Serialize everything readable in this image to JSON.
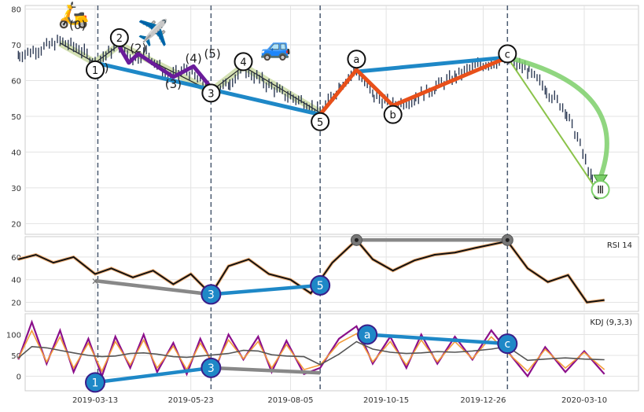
{
  "chart_data": [
    {
      "type": "line",
      "panel": "price",
      "ylim": [
        17,
        81
      ],
      "yticks": [
        20,
        30,
        40,
        50,
        60,
        70,
        80
      ],
      "grid": true,
      "x_dates": [
        "2019-03-13",
        "2019-05-23",
        "2019-08-05",
        "2019-10-15",
        "2019-12-26",
        "2020-03-10"
      ],
      "vertical_markers": [
        "2019-03-15",
        "2019-06-07",
        "2019-08-27",
        "2020-01-13"
      ],
      "wave_labels": [
        {
          "text": "(0)",
          "date": "2019-02-28",
          "y": 75.5,
          "style": "plain"
        },
        {
          "text": "2",
          "date": "2019-03-31",
          "y": 72.0,
          "style": "circle"
        },
        {
          "text": "(2)",
          "date": "2019-04-14",
          "y": 69.0,
          "style": "plain"
        },
        {
          "text": "(1)",
          "date": "2019-03-17",
          "y": 63.5,
          "style": "plain"
        },
        {
          "text": "1",
          "date": "2019-03-13",
          "y": 63.0,
          "style": "circle"
        },
        {
          "text": "(3)",
          "date": "2019-05-10",
          "y": 59.0,
          "style": "plain"
        },
        {
          "text": "(4)",
          "date": "2019-05-25",
          "y": 66.2,
          "style": "plain"
        },
        {
          "text": "(5)",
          "date": "2019-06-08",
          "y": 67.5,
          "style": "plain"
        },
        {
          "text": "3",
          "date": "2019-06-07",
          "y": 56.5,
          "style": "circle"
        },
        {
          "text": "4",
          "date": "2019-07-01",
          "y": 65.3,
          "style": "circle"
        },
        {
          "text": "5",
          "date": "2019-08-27",
          "y": 48.5,
          "style": "circle"
        },
        {
          "text": "a",
          "date": "2019-09-23",
          "y": 66.0,
          "style": "circle"
        },
        {
          "text": "b",
          "date": "2019-10-20",
          "y": 50.5,
          "style": "circle"
        },
        {
          "text": "c",
          "date": "2020-01-13",
          "y": 67.5,
          "style": "circle"
        },
        {
          "text": "Ⅲ",
          "date": "2020-03-22",
          "y": 29.5,
          "style": "circle-green"
        }
      ],
      "series": [
        {
          "values_from": "price",
          "color": "#2e3b55"
        }
      ],
      "price": [
        [
          "2019-01-15",
          67
        ],
        [
          "2019-02-01",
          69
        ],
        [
          "2019-02-15",
          71
        ],
        [
          "2019-03-01",
          69
        ],
        [
          "2019-03-13",
          65
        ],
        [
          "2019-03-31",
          70
        ],
        [
          "2019-04-10",
          66
        ],
        [
          "2019-04-20",
          68
        ],
        [
          "2019-05-06",
          61
        ],
        [
          "2019-05-20",
          63
        ],
        [
          "2019-06-07",
          57
        ],
        [
          "2019-06-20",
          59
        ],
        [
          "2019-07-01",
          63
        ],
        [
          "2019-07-15",
          60
        ],
        [
          "2019-08-01",
          56
        ],
        [
          "2019-08-15",
          54
        ],
        [
          "2019-08-27",
          51
        ],
        [
          "2019-09-10",
          58
        ],
        [
          "2019-09-23",
          63
        ],
        [
          "2019-10-05",
          56
        ],
        [
          "2019-10-20",
          53
        ],
        [
          "2019-11-05",
          55
        ],
        [
          "2019-11-20",
          58
        ],
        [
          "2019-12-05",
          61
        ],
        [
          "2019-12-20",
          64
        ],
        [
          "2020-01-13",
          66
        ],
        [
          "2020-01-28",
          63
        ],
        [
          "2020-02-10",
          58
        ],
        [
          "2020-02-25",
          52
        ],
        [
          "2020-03-05",
          44
        ],
        [
          "2020-03-15",
          33
        ],
        [
          "2020-03-20",
          29
        ]
      ],
      "overlays": [
        {
          "name": "",
          "color": "#1e88c7",
          "points": [
            [
              "2019-03-13",
              65
            ],
            [
              "2019-08-27",
              50.5
            ]
          ]
        },
        {
          "name": "",
          "color": "#1e88c7",
          "points": [
            [
              "2019-09-23",
              62.5
            ],
            [
              "2020-01-13",
              66.5
            ]
          ]
        },
        {
          "name": "",
          "color": "#e8501a",
          "points": [
            [
              "2019-08-27",
              50.5
            ],
            [
              "2019-09-23",
              63
            ],
            [
              "2019-10-20",
              53
            ],
            [
              "2020-01-13",
              66.5
            ]
          ]
        },
        {
          "name": "",
          "color": "#6a1b9a",
          "points": [
            [
              "2019-03-31",
              69.5
            ],
            [
              "2019-04-07",
              65
            ],
            [
              "2019-04-14",
              67.5
            ],
            [
              "2019-05-10",
              61
            ],
            [
              "2019-05-25",
              64
            ],
            [
              "2019-06-07",
              58
            ]
          ]
        },
        {
          "name": "",
          "color": "#8bc34a",
          "points": [
            [
              "2020-01-13",
              66.5
            ],
            [
              "2020-03-20",
              29
            ]
          ]
        }
      ],
      "markers": {
        "black_dots": [
          [
            "2020-01-13",
            66.5
          ],
          [
            "2020-03-20",
            28
          ]
        ]
      },
      "emoji": [
        {
          "glyph": "🛵",
          "date": "2019-02-25",
          "y": 76
        },
        {
          "glyph": "✈️",
          "date": "2019-04-25",
          "y": 71
        },
        {
          "glyph": "🚙",
          "date": "2019-07-25",
          "y": 67
        }
      ]
    },
    {
      "type": "line",
      "panel": "rsi",
      "title": "RSI 14",
      "ylim": [
        12,
        78
      ],
      "yticks": [
        20,
        40,
        60
      ],
      "grid": true,
      "annotations": [
        {
          "text": "3",
          "date": "2019-06-07",
          "y": 27
        },
        {
          "text": "5",
          "date": "2019-08-27",
          "y": 35
        },
        {
          "text": "",
          "date": "2019-09-23",
          "y": 75
        },
        {
          "text": "",
          "date": "2020-01-13",
          "y": 75
        }
      ],
      "lines": [
        {
          "color": "#1e88c7",
          "points": [
            [
              "2019-06-07",
              27
            ],
            [
              "2019-08-27",
              35
            ]
          ]
        },
        {
          "color": "#888888",
          "points": [
            [
              "2019-03-13",
              39
            ],
            [
              "2019-06-07",
              27
            ]
          ]
        },
        {
          "color": "#888888",
          "points": [
            [
              "2019-09-23",
              75
            ],
            [
              "2020-01-13",
              75
            ]
          ]
        }
      ],
      "series_points": [
        [
          "2019-01-15",
          58
        ],
        [
          "2019-01-28",
          62
        ],
        [
          "2019-02-10",
          55
        ],
        [
          "2019-02-25",
          60
        ],
        [
          "2019-03-13",
          45
        ],
        [
          "2019-03-25",
          50
        ],
        [
          "2019-04-10",
          42
        ],
        [
          "2019-04-25",
          48
        ],
        [
          "2019-05-10",
          36
        ],
        [
          "2019-05-23",
          45
        ],
        [
          "2019-06-07",
          27
        ],
        [
          "2019-06-20",
          52
        ],
        [
          "2019-07-05",
          58
        ],
        [
          "2019-07-20",
          45
        ],
        [
          "2019-08-05",
          40
        ],
        [
          "2019-08-20",
          28
        ],
        [
          "2019-09-05",
          55
        ],
        [
          "2019-09-23",
          75
        ],
        [
          "2019-10-05",
          58
        ],
        [
          "2019-10-20",
          48
        ],
        [
          "2019-11-05",
          57
        ],
        [
          "2019-11-20",
          62
        ],
        [
          "2019-12-05",
          64
        ],
        [
          "2019-12-20",
          68
        ],
        [
          "2020-01-13",
          74
        ],
        [
          "2020-01-28",
          50
        ],
        [
          "2020-02-12",
          38
        ],
        [
          "2020-02-27",
          44
        ],
        [
          "2020-03-12",
          20
        ],
        [
          "2020-03-25",
          22
        ]
      ]
    },
    {
      "type": "line",
      "panel": "kdj",
      "title": "KDJ (9,3,3)",
      "ylim": [
        -35,
        150
      ],
      "yticks": [
        0,
        50,
        100
      ],
      "grid": true,
      "annotations": [
        {
          "text": "1",
          "date": "2019-03-13",
          "y": -15
        },
        {
          "text": "3",
          "date": "2019-06-07",
          "y": 20
        },
        {
          "text": "a",
          "date": "2019-10-01",
          "y": 100
        },
        {
          "text": "c",
          "date": "2020-01-13",
          "y": 78
        }
      ],
      "lines": [
        {
          "color": "#1e88c7",
          "points": [
            [
              "2019-03-13",
              -15
            ],
            [
              "2019-06-07",
              20
            ]
          ]
        },
        {
          "color": "#888888",
          "points": [
            [
              "2019-06-07",
              20
            ],
            [
              "2019-08-27",
              8
            ]
          ]
        },
        {
          "color": "#1e88c7",
          "points": [
            [
              "2019-10-01",
              100
            ],
            [
              "2020-01-13",
              78
            ]
          ]
        }
      ],
      "series_points": [
        [
          "2019-01-15",
          40
        ],
        [
          "2019-01-25",
          130
        ],
        [
          "2019-02-05",
          30
        ],
        [
          "2019-02-15",
          110
        ],
        [
          "2019-02-25",
          10
        ],
        [
          "2019-03-08",
          90
        ],
        [
          "2019-03-18",
          0
        ],
        [
          "2019-03-28",
          95
        ],
        [
          "2019-04-08",
          20
        ],
        [
          "2019-04-18",
          100
        ],
        [
          "2019-04-28",
          10
        ],
        [
          "2019-05-10",
          80
        ],
        [
          "2019-05-20",
          5
        ],
        [
          "2019-05-30",
          90
        ],
        [
          "2019-06-10",
          15
        ],
        [
          "2019-06-20",
          100
        ],
        [
          "2019-07-01",
          40
        ],
        [
          "2019-07-12",
          95
        ],
        [
          "2019-07-22",
          10
        ],
        [
          "2019-08-02",
          85
        ],
        [
          "2019-08-15",
          5
        ],
        [
          "2019-08-27",
          20
        ],
        [
          "2019-09-10",
          90
        ],
        [
          "2019-09-23",
          120
        ],
        [
          "2019-10-05",
          30
        ],
        [
          "2019-10-18",
          95
        ],
        [
          "2019-10-30",
          20
        ],
        [
          "2019-11-10",
          100
        ],
        [
          "2019-11-22",
          30
        ],
        [
          "2019-12-05",
          95
        ],
        [
          "2019-12-18",
          40
        ],
        [
          "2020-01-01",
          110
        ],
        [
          "2020-01-13",
          60
        ],
        [
          "2020-01-28",
          0
        ],
        [
          "2020-02-10",
          70
        ],
        [
          "2020-02-25",
          10
        ],
        [
          "2020-03-10",
          60
        ],
        [
          "2020-03-25",
          5
        ]
      ]
    }
  ]
}
